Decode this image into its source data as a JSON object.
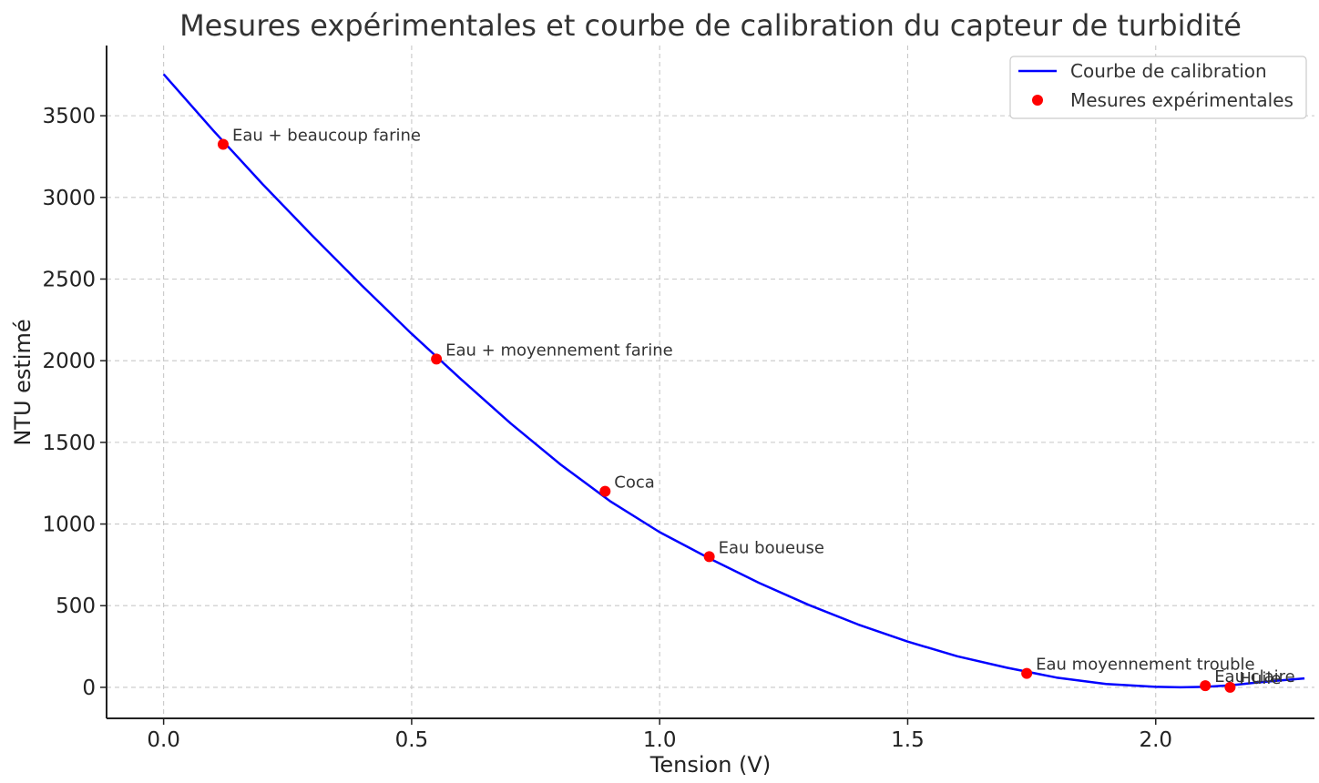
{
  "chart_data": {
    "type": "line",
    "title": "Mesures expérimentales et courbe de calibration du capteur de turbidité",
    "xlabel": "Tension (V)",
    "ylabel": "NTU estimé",
    "xlim": [
      -0.115,
      2.32
    ],
    "ylim": [
      -190,
      3930
    ],
    "x_ticks": [
      0.0,
      0.5,
      1.0,
      1.5,
      2.0
    ],
    "x_tick_labels": [
      "0.0",
      "0.5",
      "1.0",
      "1.5",
      "2.0"
    ],
    "y_ticks": [
      0,
      500,
      1000,
      1500,
      2000,
      2500,
      3000,
      3500
    ],
    "y_tick_labels": [
      "0",
      "500",
      "1000",
      "1500",
      "2000",
      "2500",
      "3000",
      "3500"
    ],
    "grid": true,
    "legend_position": "top-right",
    "series": [
      {
        "name": "Courbe de calibration",
        "kind": "line",
        "color": "#0000ff",
        "x": [
          0.0,
          0.1,
          0.2,
          0.3,
          0.4,
          0.5,
          0.6,
          0.7,
          0.8,
          0.9,
          1.0,
          1.1,
          1.2,
          1.3,
          1.4,
          1.5,
          1.6,
          1.7,
          1.8,
          1.9,
          2.0,
          2.05,
          2.1,
          2.15,
          2.2,
          2.25,
          2.3
        ],
        "y": [
          3755,
          3410,
          3080,
          2765,
          2460,
          2165,
          1885,
          1615,
          1365,
          1140,
          950,
          790,
          640,
          505,
          385,
          280,
          190,
          120,
          60,
          20,
          3,
          0,
          3,
          12,
          28,
          42,
          55
        ]
      },
      {
        "name": "Mesures expérimentales",
        "kind": "scatter",
        "color": "#ff0000",
        "points": [
          {
            "x": 0.12,
            "y": 3325,
            "label": "Eau + beaucoup farine"
          },
          {
            "x": 0.55,
            "y": 2010,
            "label": "Eau + moyennement farine"
          },
          {
            "x": 0.89,
            "y": 1200,
            "label": "Coca"
          },
          {
            "x": 1.1,
            "y": 800,
            "label": "Eau boueuse"
          },
          {
            "x": 1.74,
            "y": 85,
            "label": "Eau moyennement trouble"
          },
          {
            "x": 2.1,
            "y": 10,
            "label": "Eau claire"
          },
          {
            "x": 2.15,
            "y": 0,
            "label": "Huile"
          }
        ]
      }
    ]
  }
}
